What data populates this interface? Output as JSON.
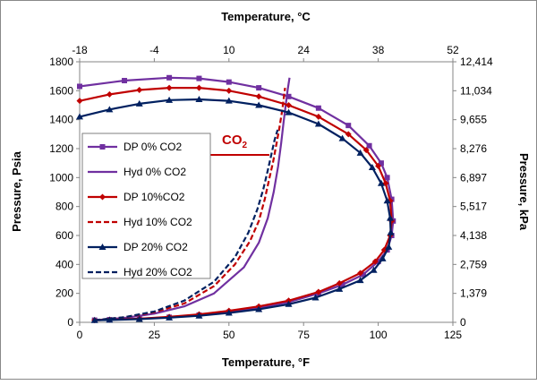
{
  "chart_data": {
    "type": "line",
    "xlabel": "Temperature, °F",
    "x2label": "Temperature, °C",
    "ylabel": "Pressure, Psia",
    "y2label": "Pressure, kPa",
    "xlim": [
      0,
      125
    ],
    "x2lim": [
      -18,
      52
    ],
    "ylim": [
      0,
      1800
    ],
    "xticks": [
      "0",
      "25",
      "50",
      "75",
      "100",
      "125"
    ],
    "x2ticks": [
      "-18",
      "-4",
      "10",
      "24",
      "38",
      "52"
    ],
    "yticks": [
      "0",
      "200",
      "400",
      "600",
      "800",
      "1000",
      "1200",
      "1400",
      "1600",
      "1800"
    ],
    "y2ticks": [
      "0",
      "1,379",
      "2,759",
      "4,138",
      "5,517",
      "6,897",
      "8,276",
      "9,655",
      "11,034",
      "12,414"
    ],
    "grid": false,
    "legend_position": "left",
    "annotation": {
      "text": "CO",
      "subscript": "2",
      "color": "#c00000"
    },
    "series": [
      {
        "name": "DP 0% CO2",
        "color": "#7030a0",
        "line_style": "solid",
        "marker": "square",
        "x": [
          0,
          15,
          30,
          40,
          50,
          60,
          70,
          80,
          90,
          97,
          101,
          103,
          104.5,
          105,
          104.5,
          103,
          100,
          95,
          88,
          80,
          70,
          60,
          50,
          40,
          30,
          20,
          10,
          5
        ],
        "y": [
          1630,
          1670,
          1690,
          1685,
          1660,
          1620,
          1560,
          1480,
          1360,
          1220,
          1100,
          1000,
          850,
          700,
          600,
          500,
          420,
          330,
          260,
          200,
          140,
          100,
          70,
          50,
          35,
          25,
          18,
          15
        ]
      },
      {
        "name": "Hyd 0% CO2",
        "color": "#7030a0",
        "line_style": "solid",
        "marker": "none",
        "x": [
          5,
          15,
          25,
          35,
          45,
          55,
          60,
          63,
          65,
          66.5,
          67.5,
          68.3,
          69,
          69.7,
          70.3
        ],
        "y": [
          15,
          30,
          60,
          110,
          200,
          380,
          550,
          720,
          900,
          1080,
          1240,
          1380,
          1500,
          1610,
          1690
        ]
      },
      {
        "name": "DP 10%CO2",
        "color": "#c00000",
        "line_style": "solid",
        "marker": "diamond",
        "x": [
          0,
          10,
          20,
          30,
          40,
          50,
          60,
          70,
          80,
          90,
          96,
          100,
          102.5,
          104,
          104.5,
          104,
          102,
          99,
          94,
          87,
          80,
          70,
          60,
          50,
          40,
          30,
          20,
          10,
          5
        ],
        "y": [
          1530,
          1575,
          1605,
          1620,
          1620,
          1600,
          1560,
          1500,
          1420,
          1300,
          1190,
          1080,
          960,
          840,
          700,
          600,
          500,
          420,
          340,
          270,
          210,
          150,
          110,
          80,
          55,
          38,
          25,
          18,
          15
        ]
      },
      {
        "name": "Hyd 10% CO2",
        "color": "#c00000",
        "line_style": "dashed",
        "marker": "none",
        "x": [
          5,
          15,
          25,
          35,
          45,
          52,
          57,
          60,
          62,
          63.5,
          64.8,
          65.8,
          66.8,
          67.8,
          68.8
        ],
        "y": [
          15,
          35,
          70,
          130,
          250,
          400,
          560,
          700,
          850,
          990,
          1110,
          1220,
          1330,
          1460,
          1620
        ]
      },
      {
        "name": "DP 20% CO2",
        "color": "#002060",
        "line_style": "solid",
        "marker": "triangle",
        "x": [
          0,
          10,
          20,
          30,
          40,
          50,
          60,
          70,
          80,
          88,
          94,
          98,
          101,
          103,
          104,
          104.2,
          103.5,
          101.5,
          98.5,
          94,
          87,
          79,
          70,
          60,
          50,
          40,
          30,
          20,
          10,
          5
        ],
        "y": [
          1420,
          1470,
          1510,
          1535,
          1540,
          1530,
          1500,
          1450,
          1370,
          1270,
          1170,
          1070,
          960,
          840,
          720,
          620,
          520,
          440,
          360,
          290,
          230,
          170,
          125,
          90,
          65,
          45,
          32,
          22,
          16,
          14
        ]
      },
      {
        "name": "Hyd 20% CO2",
        "color": "#002060",
        "line_style": "dashed",
        "marker": "none",
        "x": [
          5,
          15,
          25,
          35,
          45,
          52,
          56.5,
          59.5,
          61.5,
          63,
          64.2,
          65.3,
          66.3
        ],
        "y": [
          15,
          35,
          75,
          150,
          280,
          450,
          620,
          780,
          920,
          1050,
          1160,
          1260,
          1330
        ]
      }
    ]
  }
}
